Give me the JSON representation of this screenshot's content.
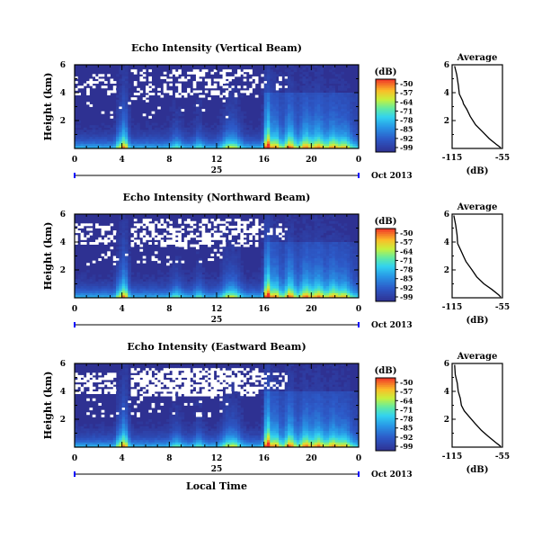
{
  "chart_data": [
    {
      "type": "heatmap",
      "title": "Echo Intensity (Vertical Beam)",
      "ylabel": "Height (km)",
      "yticks": [
        "6",
        "4",
        "2"
      ],
      "ylim": [
        0,
        6
      ],
      "xticks": [
        "0",
        "4",
        "8",
        "12",
        "16",
        "20",
        "0"
      ],
      "xlim": [
        0,
        24
      ],
      "date_day": "25",
      "date_month_year": "Oct 2013",
      "colorbar": {
        "label": "(dB)",
        "ticks": [
          "-50",
          "-57",
          "-64",
          "-71",
          "-78",
          "-85",
          "-92",
          "-99"
        ]
      },
      "profile": {
        "title": "Average",
        "xlabel": "(dB)",
        "xticks": [
          "-115",
          "-55"
        ],
        "xlim": [
          -115,
          -55
        ],
        "yticks": [
          "6",
          "4",
          "2"
        ],
        "ylim": [
          0,
          6
        ],
        "points": [
          [
            -112,
            5.9
          ],
          [
            -110,
            5.3
          ],
          [
            -107,
            4.5
          ],
          [
            -106,
            3.9
          ],
          [
            -103,
            3.4
          ],
          [
            -101,
            3.2
          ],
          [
            -98,
            2.8
          ],
          [
            -93,
            2.3
          ],
          [
            -87,
            1.7
          ],
          [
            -79,
            1.2
          ],
          [
            -70,
            0.7
          ],
          [
            -62,
            0.3
          ],
          [
            -57,
            0.05
          ]
        ]
      }
    },
    {
      "type": "heatmap",
      "title": "Echo Intensity (Northward Beam)",
      "ylabel": "Height (km)",
      "yticks": [
        "6",
        "4",
        "2"
      ],
      "ylim": [
        0,
        6
      ],
      "xticks": [
        "0",
        "4",
        "8",
        "12",
        "16",
        "20",
        "0"
      ],
      "xlim": [
        0,
        24
      ],
      "date_day": "25",
      "date_month_year": "Oct 2013",
      "colorbar": {
        "label": "(dB)",
        "ticks": [
          "-50",
          "-57",
          "-64",
          "-71",
          "-78",
          "-85",
          "-92",
          "-99"
        ]
      },
      "profile": {
        "title": "Average",
        "xlabel": "(dB)",
        "xticks": [
          "-115",
          "-55"
        ],
        "xlim": [
          -115,
          -55
        ],
        "yticks": [
          "6",
          "4",
          "2"
        ],
        "ylim": [
          0,
          6
        ],
        "points": [
          [
            -113,
            5.9
          ],
          [
            -111,
            5.2
          ],
          [
            -109,
            4.5
          ],
          [
            -108,
            3.9
          ],
          [
            -105,
            3.4
          ],
          [
            -102,
            3.0
          ],
          [
            -98,
            2.6
          ],
          [
            -92,
            2.0
          ],
          [
            -85,
            1.5
          ],
          [
            -77,
            1.0
          ],
          [
            -68,
            0.6
          ],
          [
            -60,
            0.2
          ],
          [
            -57,
            0.05
          ]
        ]
      }
    },
    {
      "type": "heatmap",
      "title": "Echo Intensity (Eastward Beam)",
      "ylabel": "Height (km)",
      "yticks": [
        "6",
        "4",
        "2"
      ],
      "ylim": [
        0,
        6
      ],
      "xticks": [
        "0",
        "4",
        "8",
        "12",
        "16",
        "20",
        "0"
      ],
      "xlim": [
        0,
        24
      ],
      "xlabel": "Local Time",
      "date_day": "25",
      "date_month_year": "Oct 2013",
      "colorbar": {
        "label": "(dB)",
        "ticks": [
          "-50",
          "-57",
          "-64",
          "-71",
          "-78",
          "-85",
          "-92",
          "-99"
        ]
      },
      "profile": {
        "title": "Average",
        "xlabel": "(dB)",
        "xticks": [
          "-115",
          "-55"
        ],
        "xlim": [
          -115,
          -55
        ],
        "yticks": [
          "6",
          "4",
          "2"
        ],
        "ylim": [
          0,
          6
        ],
        "points": [
          [
            -112,
            5.9
          ],
          [
            -111,
            5.2
          ],
          [
            -109,
            4.6
          ],
          [
            -108,
            4.0
          ],
          [
            -106,
            3.5
          ],
          [
            -104,
            3.0
          ],
          [
            -101,
            2.6
          ],
          [
            -95,
            2.2
          ],
          [
            -88,
            1.7
          ],
          [
            -80,
            1.2
          ],
          [
            -72,
            0.8
          ],
          [
            -63,
            0.35
          ],
          [
            -57,
            0.05
          ]
        ]
      }
    }
  ]
}
